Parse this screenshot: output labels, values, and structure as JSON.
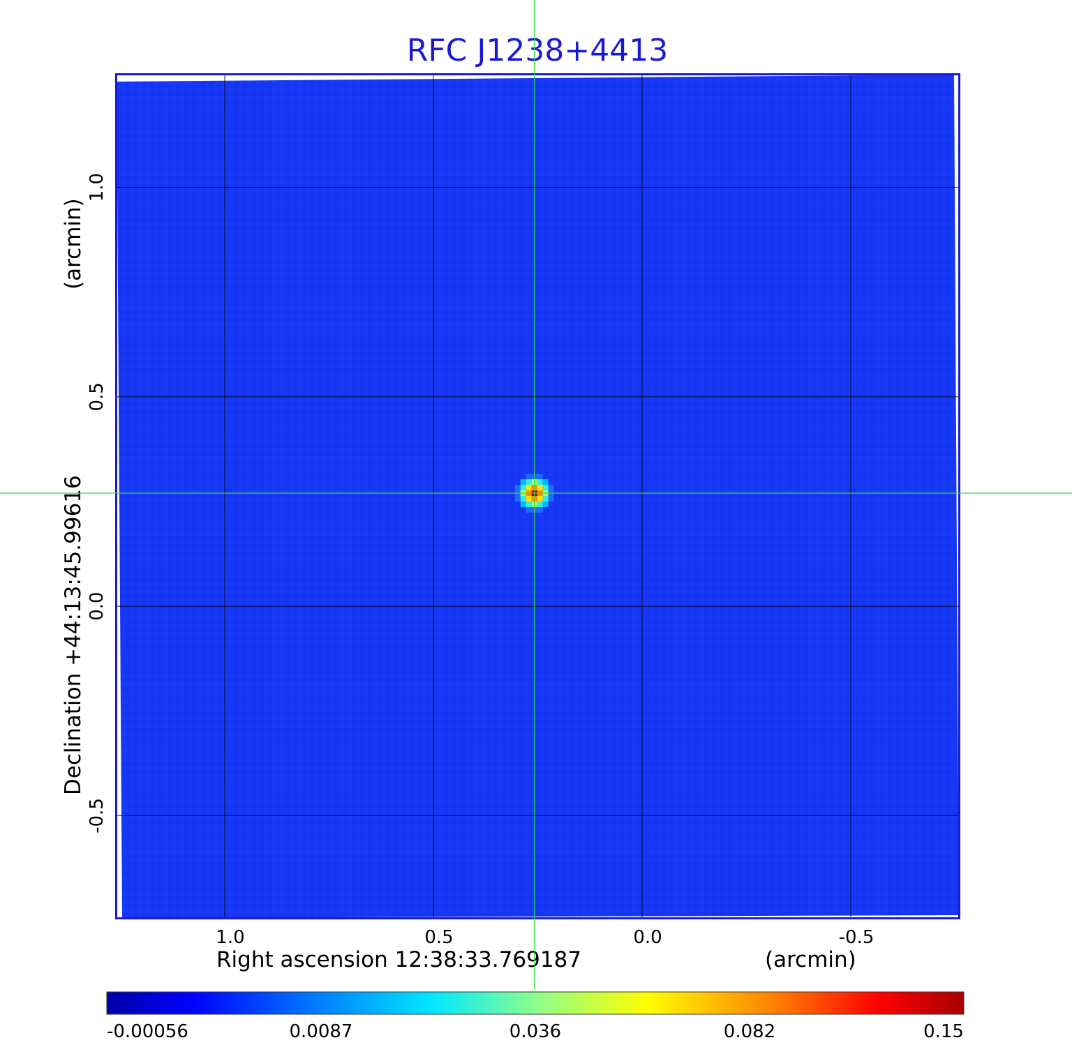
{
  "chart_data": {
    "type": "heatmap",
    "title": "RFC J1238+4413",
    "xlabel": "Right ascension  12:38:33.769187",
    "xunit": "(arcmin)",
    "ylabel": "Declination  +44:13:45.99616",
    "yunit": "(arcmin)",
    "x_ticks": [
      {
        "value": 1.0,
        "label": "1.0"
      },
      {
        "value": 0.5,
        "label": "0.5"
      },
      {
        "value": 0.0,
        "label": "0.0"
      },
      {
        "value": -0.5,
        "label": "-0.5"
      }
    ],
    "y_ticks": [
      {
        "value": 1.0,
        "label": "1.0"
      },
      {
        "value": 0.5,
        "label": "0.5"
      },
      {
        "value": 0.0,
        "label": "0.0"
      },
      {
        "value": -0.5,
        "label": "-0.5"
      }
    ],
    "xlim": [
      1.26,
      -0.76
    ],
    "ylim": [
      -0.745,
      1.27
    ],
    "x_reversed": true,
    "grid": true,
    "source": {
      "x": 0.258,
      "y": 0.27,
      "peak": 0.15
    },
    "crosshair": {
      "x": 0.258,
      "y": 0.27
    },
    "colormap": "jet",
    "colorbar": {
      "ticks": [
        {
          "value": -0.00056,
          "label": "-0.00056"
        },
        {
          "value": 0.0087,
          "label": "0.0087"
        },
        {
          "value": 0.036,
          "label": "0.036"
        },
        {
          "value": 0.082,
          "label": "0.082"
        },
        {
          "value": 0.15,
          "label": "0.15"
        }
      ],
      "range": [
        -0.00056,
        0.15
      ]
    }
  },
  "colors": {
    "background_field": "#1637f5",
    "frame": "#1a1ad6",
    "grid": "#000000",
    "crosshair": "#33dd33",
    "title": "#1a1ad6",
    "colormap_stops": [
      "#0000a8",
      "#0000ff",
      "#00e0ff",
      "#90ff90",
      "#ffff00",
      "#ff8000",
      "#ff0000",
      "#a80000"
    ]
  }
}
